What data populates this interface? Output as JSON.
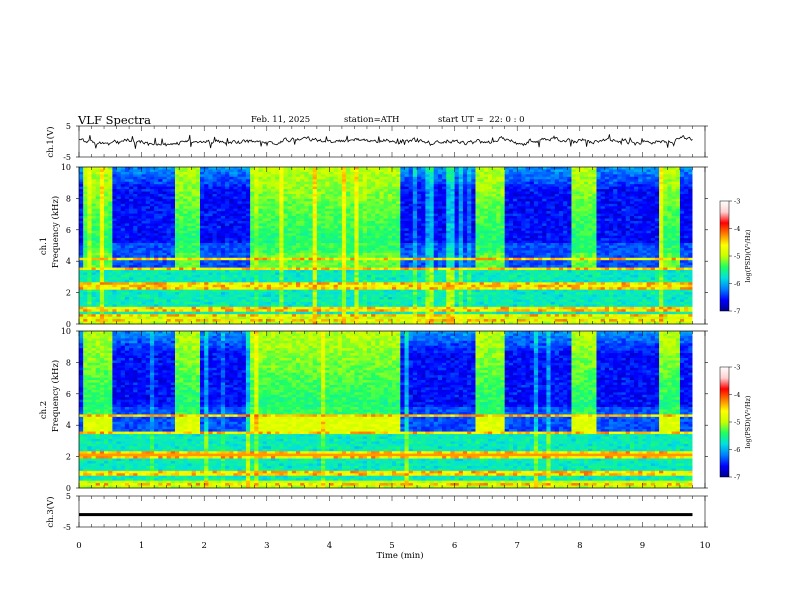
{
  "header": {
    "title": "VLF Spectra",
    "date": "Feb. 11, 2025",
    "station": "station=ATH",
    "start": "start UT =  22: 0 : 0"
  },
  "chart_data": {
    "type": "heatmap",
    "title": "VLF Spectra",
    "x": {
      "label": "Time (min)",
      "range": [
        0,
        10
      ],
      "ticks": [
        "0",
        "1",
        "2",
        "3",
        "4",
        "5",
        "6",
        "7",
        "8",
        "9",
        "10"
      ]
    },
    "panels": [
      {
        "name": "ch.1",
        "kind": "line",
        "ylabel": "ch.1(V)",
        "ylim": [
          -5,
          5
        ],
        "yticks": [
          "5",
          "-5"
        ],
        "series_note": "noisy trace around 0 V from 0 to 9.8 min"
      },
      {
        "name": "ch.1 spectrogram",
        "kind": "heatmap",
        "ylabel": "Frequency (kHz)",
        "channel_label": "ch.1",
        "ylim": [
          0,
          10
        ],
        "yticks": [
          "0",
          "2",
          "4",
          "6",
          "8",
          "10"
        ],
        "colorbar": {
          "label": "log(PSD)(V²/Hz)",
          "range": [
            -7,
            -3
          ],
          "ticks": [
            "-3",
            "-4",
            "-5",
            "-6",
            "-7"
          ]
        },
        "bright_segments_min": [
          [
            0.1,
            0.55
          ],
          [
            1.55,
            1.95
          ],
          [
            2.72,
            5.1
          ],
          [
            6.35,
            6.78
          ],
          [
            7.85,
            8.28
          ],
          [
            9.3,
            9.6
          ]
        ],
        "strong_lines_khz": [
          0.2,
          0.6,
          0.8,
          1.0,
          2.2,
          2.5,
          3.5,
          4.2
        ]
      },
      {
        "name": "ch.2 spectrogram",
        "kind": "heatmap",
        "ylabel": "Frequency (kHz)",
        "channel_label": "ch.2",
        "ylim": [
          0,
          10
        ],
        "yticks": [
          "0",
          "2",
          "4",
          "6",
          "8",
          "10"
        ],
        "colorbar": {
          "label": "log(PSD)(V²/Hz)",
          "range": [
            -7,
            -3
          ],
          "ticks": [
            "-3",
            "-4",
            "-5",
            "-6",
            "-7"
          ]
        },
        "bright_segments_min": [
          [
            0.1,
            0.55
          ],
          [
            1.55,
            1.95
          ],
          [
            2.72,
            5.1
          ],
          [
            6.35,
            6.78
          ],
          [
            7.85,
            8.28
          ],
          [
            9.3,
            9.6
          ]
        ],
        "strong_lines_khz": [
          0.2,
          0.8,
          1.0,
          2.0,
          2.2,
          3.5,
          4.6
        ]
      },
      {
        "name": "ch.3",
        "kind": "line",
        "ylabel": "ch.3(V)",
        "ylim": [
          -5,
          5
        ],
        "yticks": [
          "5",
          "-5"
        ],
        "y_level": -1.0,
        "series_note": "flat trace near -1 V from 0 to 9.8 min"
      }
    ]
  },
  "colors": {
    "cmap": [
      "#00008a",
      "#0000ff",
      "#0080ff",
      "#00e0e0",
      "#20ff60",
      "#c8ff00",
      "#ffff00",
      "#ff8000",
      "#ff0000",
      "#ffd0d0",
      "#ffffff"
    ]
  }
}
